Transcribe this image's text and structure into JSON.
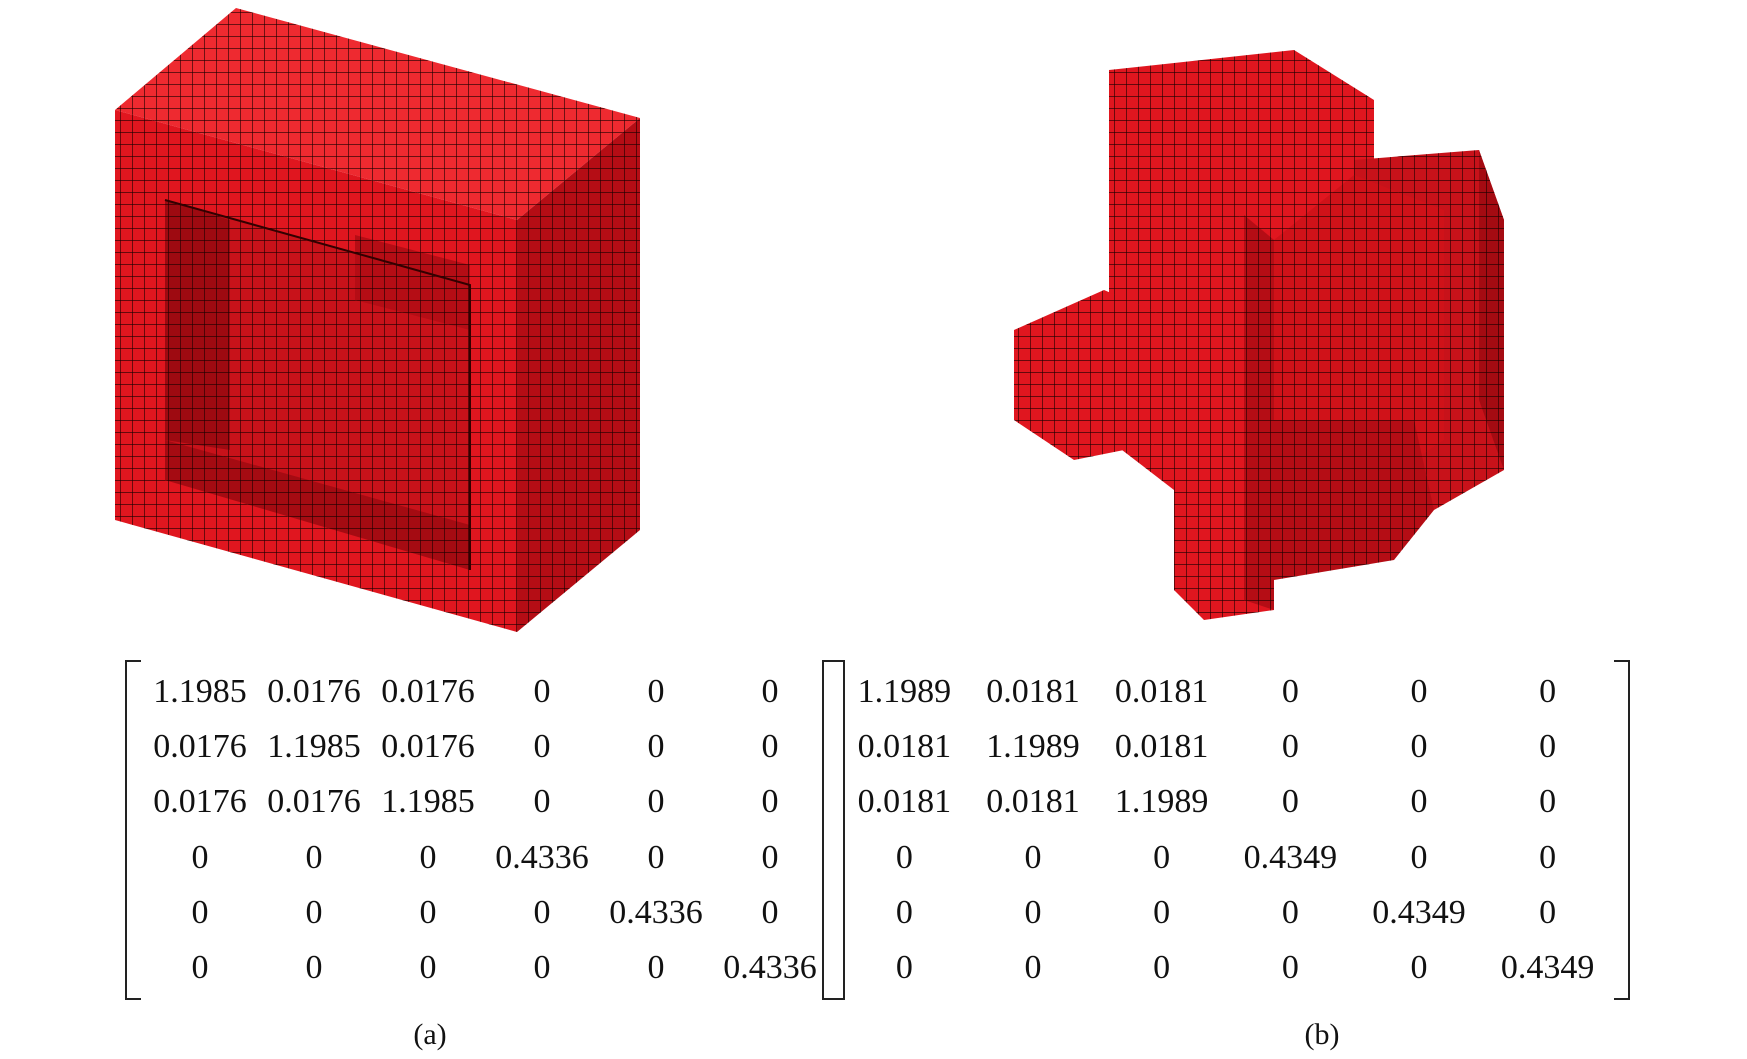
{
  "figures": [
    {
      "id": "a",
      "caption": "(a)",
      "matrix": [
        [
          "1.1985",
          "0.0176",
          "0.0176",
          "0",
          "0",
          "0"
        ],
        [
          "0.0176",
          "1.1985",
          "0.0176",
          "0",
          "0",
          "0"
        ],
        [
          "0.0176",
          "0.0176",
          "1.1985",
          "0",
          "0",
          "0"
        ],
        [
          "0",
          "0",
          "0",
          "0.4336",
          "0",
          "0"
        ],
        [
          "0",
          "0",
          "0",
          "0",
          "0.4336",
          "0"
        ],
        [
          "0",
          "0",
          "0",
          "0",
          "0",
          "0.4336"
        ]
      ]
    },
    {
      "id": "b",
      "caption": "(b)",
      "matrix": [
        [
          "1.1989",
          "0.0181",
          "0.0181",
          "0",
          "0",
          "0"
        ],
        [
          "0.0181",
          "1.1989",
          "0.0181",
          "0",
          "0",
          "0"
        ],
        [
          "0.0181",
          "0.0181",
          "1.1989",
          "0",
          "0",
          "0"
        ],
        [
          "0",
          "0",
          "0",
          "0.4349",
          "0",
          "0"
        ],
        [
          "0",
          "0",
          "0",
          "0",
          "0.4349",
          "0"
        ],
        [
          "0",
          "0",
          "0",
          "0",
          "0",
          "0.4349"
        ]
      ]
    }
  ],
  "colors": {
    "voxel": "#e0161f",
    "voxel_dark": "#b50d15",
    "voxel_top": "#ee2a30",
    "grid": "#1a0000"
  }
}
